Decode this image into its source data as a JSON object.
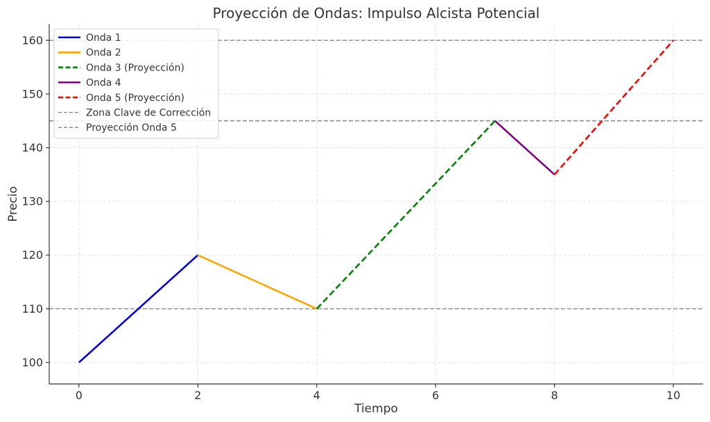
{
  "chart_data": {
    "type": "line",
    "title": "Proyección de Ondas: Impulso Alcista Potencial",
    "xlabel": "Tiempo",
    "ylabel": "Precio",
    "xlim": [
      -0.5,
      10.5
    ],
    "ylim": [
      96,
      163
    ],
    "xticks": [
      0,
      2,
      4,
      6,
      8,
      10
    ],
    "yticks": [
      100,
      110,
      120,
      130,
      140,
      150,
      160
    ],
    "grid": true,
    "legend_position": "top-left",
    "series": [
      {
        "name": "Onda 1",
        "x": [
          0,
          2
        ],
        "y": [
          100,
          120
        ],
        "color": "#0000ee",
        "dashed": false
      },
      {
        "name": "Onda 2",
        "x": [
          2,
          4
        ],
        "y": [
          120,
          110
        ],
        "color": "#ffa500",
        "dashed": false
      },
      {
        "name": "Onda 3 (Proyección)",
        "x": [
          4,
          7
        ],
        "y": [
          110,
          145
        ],
        "color": "#008000",
        "dashed": true
      },
      {
        "name": "Onda 4",
        "x": [
          7,
          8
        ],
        "y": [
          145,
          135
        ],
        "color": "#800080",
        "dashed": false
      },
      {
        "name": "Onda 5 (Proyección)",
        "x": [
          8,
          10
        ],
        "y": [
          135,
          160
        ],
        "color": "#ff0000",
        "dashed": true
      }
    ],
    "hlines": [
      {
        "name": "Zona Clave de Corrección",
        "y": [
          110,
          145
        ],
        "color": "#808080"
      },
      {
        "name": "Proyección Onda 5",
        "y": [
          160
        ],
        "color": "#808080"
      }
    ]
  }
}
